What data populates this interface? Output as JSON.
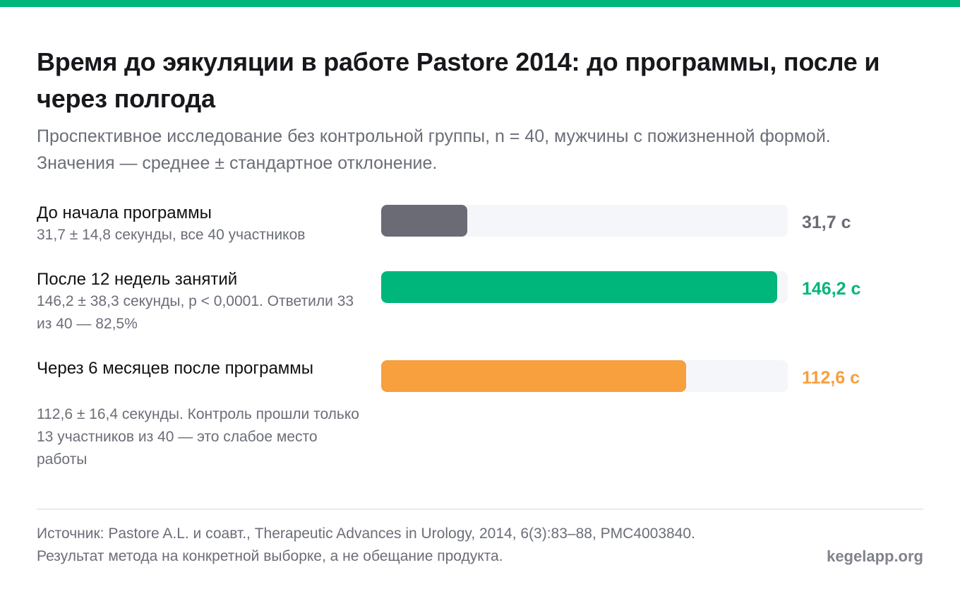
{
  "title": "Время до эякуляции в работе Pastore 2014: до программы, после и через полгода",
  "subtitle": "Проспективное исследование без контрольной группы, n = 40, мужчины с пожизненной формой. Значения — среднее ± стандартное отклонение.",
  "colors": {
    "accent": "#00b67a",
    "baseline": "#6b6b75",
    "followup": "#f7a03d",
    "track": "#f5f6fa"
  },
  "chart_data": {
    "type": "bar",
    "orientation": "horizontal",
    "xlim": [
      0,
      150
    ],
    "categories": [
      "До начала программы",
      "После 12 недель занятий",
      "Через 6 месяцев после программы"
    ],
    "values": [
      31.7,
      146.2,
      112.6
    ],
    "value_labels": [
      "31,7 с",
      "146,2 с",
      "112,6 с"
    ],
    "notes": [
      "31,7 ± 14,8 секунды, все 40 участников",
      "146,2 ± 38,3 секунды, p < 0,0001. Ответили 33 из 40 — 82,5%",
      "112,6 ± 16,4 секунды. Контроль прошли только 13 участников из 40 — это слабое место работы"
    ],
    "bar_colors": [
      "#6b6b75",
      "#00b67a",
      "#f7a03d"
    ]
  },
  "footer": {
    "source": "Источник: Pastore A.L. и соавт., Therapeutic Advances in Urology, 2014, 6(3):83–88, PMC4003840. Результат метода на конкретной выборке, а не обещание продукта.",
    "site": "kegelapp.org"
  }
}
